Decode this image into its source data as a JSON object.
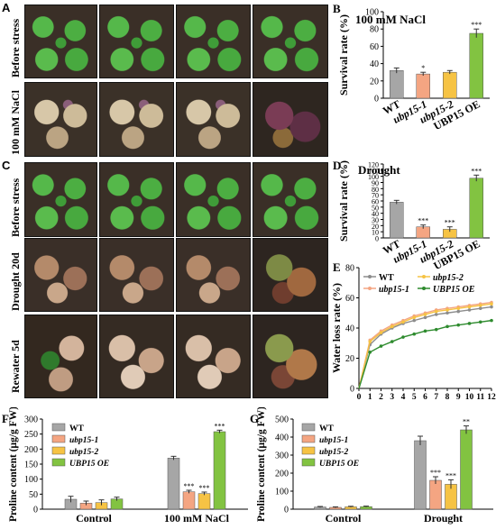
{
  "panels": {
    "A": "A",
    "B": "B",
    "C": "C",
    "D": "D",
    "E": "E",
    "F": "F",
    "G": "G"
  },
  "photo_rows": {
    "A_before": "Before stress",
    "A_salt": "100 mM NaCl",
    "C_before": "Before stress",
    "C_drought": "Drought 20d",
    "C_rewater": "Rewater 5d"
  },
  "colors": {
    "WT": "#a6a6a6",
    "ubp15-1": "#f4a582",
    "ubp15-2": "#f6c344",
    "UBP15 OE": "#82c341"
  },
  "chart_data": [
    {
      "id": "B",
      "type": "bar",
      "title": "100 mM NaCl",
      "ylabel": "Survival rate (%)",
      "categories": [
        "WT",
        "ubp15-1",
        "ubp15-2",
        "UBP15 OE"
      ],
      "values": [
        32,
        28,
        30,
        75
      ],
      "errors": [
        3,
        2,
        2,
        5
      ],
      "significance": [
        "",
        "*",
        "",
        "***"
      ],
      "ylim": [
        0,
        100
      ],
      "yticks": [
        "0",
        "20",
        "40",
        "60",
        "80",
        "100"
      ]
    },
    {
      "id": "D",
      "type": "bar",
      "title": "Drought",
      "ylabel": "Survival rate (%)",
      "categories": [
        "WT",
        "ubp15-1",
        "ubp15-2",
        "UBP15 OE"
      ],
      "values": [
        58,
        18,
        14,
        97
      ],
      "errors": [
        3,
        3,
        4,
        5
      ],
      "significance": [
        "",
        "***",
        "***",
        "***"
      ],
      "ylim": [
        0,
        120
      ],
      "yticks": [
        "0",
        "10",
        "20",
        "30",
        "40",
        "50",
        "60",
        "70",
        "80",
        "90",
        "100",
        "110",
        "120"
      ]
    },
    {
      "id": "E",
      "type": "line",
      "xlabel": "Time (hours)",
      "ylabel": "Water loss rate (%)",
      "xlim": [
        0,
        12
      ],
      "ylim": [
        0,
        80
      ],
      "xticks": [
        "0",
        "1",
        "2",
        "3",
        "4",
        "5",
        "6",
        "7",
        "8",
        "9",
        "10",
        "11",
        "12"
      ],
      "yticks": [
        "0",
        "20",
        "40",
        "60",
        "80"
      ],
      "legend": [
        "WT",
        "ubp15-1",
        "ubp15-2",
        "UBP15 OE"
      ],
      "x": [
        1,
        2,
        3,
        4,
        5,
        6,
        7,
        8,
        9,
        10,
        11,
        12
      ],
      "series": [
        {
          "name": "WT",
          "values": [
            29,
            36,
            40,
            43,
            45,
            47,
            49,
            50,
            51,
            52,
            53,
            54
          ]
        },
        {
          "name": "ubp15-1",
          "values": [
            32,
            38,
            42,
            45,
            48,
            50,
            52,
            53,
            54,
            55,
            56,
            57
          ]
        },
        {
          "name": "ubp15-2",
          "values": [
            31,
            37,
            41,
            44,
            47,
            49,
            51,
            52,
            53,
            54,
            55,
            56
          ]
        },
        {
          "name": "UBP15 OE",
          "values": [
            24,
            28,
            31,
            34,
            36,
            38,
            39,
            41,
            42,
            43,
            44,
            45
          ]
        }
      ]
    },
    {
      "id": "F",
      "type": "bar",
      "ylabel": "Proline content (μg/g FW)",
      "categories": [
        "Control",
        "100 mM NaCl"
      ],
      "legend": [
        "WT",
        "ubp15-1",
        "ubp15-2",
        "UBP15 OE"
      ],
      "series": [
        {
          "name": "WT",
          "values": [
            33,
            170
          ],
          "errors": [
            10,
            6
          ]
        },
        {
          "name": "ubp15-1",
          "values": [
            20,
            58
          ],
          "errors": [
            7,
            5
          ]
        },
        {
          "name": "ubp15-2",
          "values": [
            22,
            52
          ],
          "errors": [
            9,
            5
          ]
        },
        {
          "name": "UBP15 OE",
          "values": [
            34,
            258
          ],
          "errors": [
            6,
            5
          ]
        }
      ],
      "significance": [
        [
          "",
          "",
          "",
          ""
        ],
        [
          "",
          "***",
          "***",
          "***"
        ]
      ],
      "ylim": [
        0,
        300
      ],
      "yticks": [
        "0",
        "50",
        "100",
        "150",
        "200",
        "250",
        "300"
      ]
    },
    {
      "id": "G",
      "type": "bar",
      "ylabel": "Proline content (μg/g FW)",
      "categories": [
        "Control",
        "Drought"
      ],
      "legend": [
        "WT",
        "ubp15-1",
        "ubp15-2",
        "UBP15 OE"
      ],
      "series": [
        {
          "name": "WT",
          "values": [
            12,
            380
          ],
          "errors": [
            3,
            25
          ]
        },
        {
          "name": "ubp15-1",
          "values": [
            10,
            160
          ],
          "errors": [
            3,
            20
          ]
        },
        {
          "name": "ubp15-2",
          "values": [
            13,
            138
          ],
          "errors": [
            3,
            25
          ]
        },
        {
          "name": "UBP15 OE",
          "values": [
            14,
            440
          ],
          "errors": [
            3,
            22
          ]
        }
      ],
      "significance": [
        [
          "",
          "",
          "",
          ""
        ],
        [
          "",
          "***",
          "***",
          "**"
        ]
      ],
      "ylim": [
        0,
        500
      ],
      "yticks": [
        "0",
        "100",
        "200",
        "300",
        "400",
        "500"
      ]
    }
  ]
}
